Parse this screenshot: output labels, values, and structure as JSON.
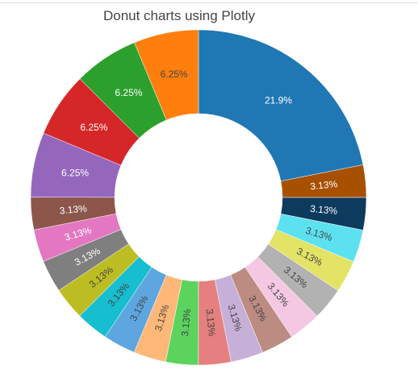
{
  "chart_data": {
    "type": "pie",
    "title": "Donut charts using Plotly",
    "hole": 0.5,
    "sort": "descending",
    "direction": "clockwise",
    "text_info": "percent",
    "legend": "none",
    "slices": [
      {
        "percent": "21.9%",
        "value": 21.9,
        "color": "#1f77b4",
        "label_color": "#ffffff"
      },
      {
        "percent": "3.13%",
        "value": 3.13,
        "color": "#a65000",
        "label_color": "#ffffff"
      },
      {
        "percent": "3.13%",
        "value": 3.13,
        "color": "#0d3b5e",
        "label_color": "#ffffff"
      },
      {
        "percent": "3.13%",
        "value": 3.13,
        "color": "#5ce1f0",
        "label_color": "#444444"
      },
      {
        "percent": "3.13%",
        "value": 3.13,
        "color": "#e3e366",
        "label_color": "#444444"
      },
      {
        "percent": "3.13%",
        "value": 3.13,
        "color": "#b2b2b2",
        "label_color": "#444444"
      },
      {
        "percent": "3.13%",
        "value": 3.13,
        "color": "#f4c8e3",
        "label_color": "#444444"
      },
      {
        "percent": "3.13%",
        "value": 3.13,
        "color": "#bc8b81",
        "label_color": "#444444"
      },
      {
        "percent": "3.13%",
        "value": 3.13,
        "color": "#c6b0d8",
        "label_color": "#444444"
      },
      {
        "percent": "3.13%",
        "value": 3.13,
        "color": "#e67f7f",
        "label_color": "#444444"
      },
      {
        "percent": "3.13%",
        "value": 3.13,
        "color": "#5cd35c",
        "label_color": "#444444"
      },
      {
        "percent": "3.13%",
        "value": 3.13,
        "color": "#ffb878",
        "label_color": "#444444"
      },
      {
        "percent": "3.13%",
        "value": 3.13,
        "color": "#5da6e0",
        "label_color": "#444444"
      },
      {
        "percent": "3.13%",
        "value": 3.13,
        "color": "#17becf",
        "label_color": "#444444"
      },
      {
        "percent": "3.13%",
        "value": 3.13,
        "color": "#bcbd22",
        "label_color": "#444444"
      },
      {
        "percent": "3.13%",
        "value": 3.13,
        "color": "#7f7f7f",
        "label_color": "#ffffff"
      },
      {
        "percent": "3.13%",
        "value": 3.13,
        "color": "#e377c2",
        "label_color": "#ffffff"
      },
      {
        "percent": "3.13%",
        "value": 3.13,
        "color": "#8c564b",
        "label_color": "#ffffff"
      },
      {
        "percent": "6.25%",
        "value": 6.25,
        "color": "#9467bd",
        "label_color": "#ffffff"
      },
      {
        "percent": "6.25%",
        "value": 6.25,
        "color": "#d62728",
        "label_color": "#ffffff"
      },
      {
        "percent": "6.25%",
        "value": 6.25,
        "color": "#2ca02c",
        "label_color": "#ffffff"
      },
      {
        "percent": "6.25%",
        "value": 6.25,
        "color": "#ff7f0e",
        "label_color": "#444444"
      }
    ]
  }
}
